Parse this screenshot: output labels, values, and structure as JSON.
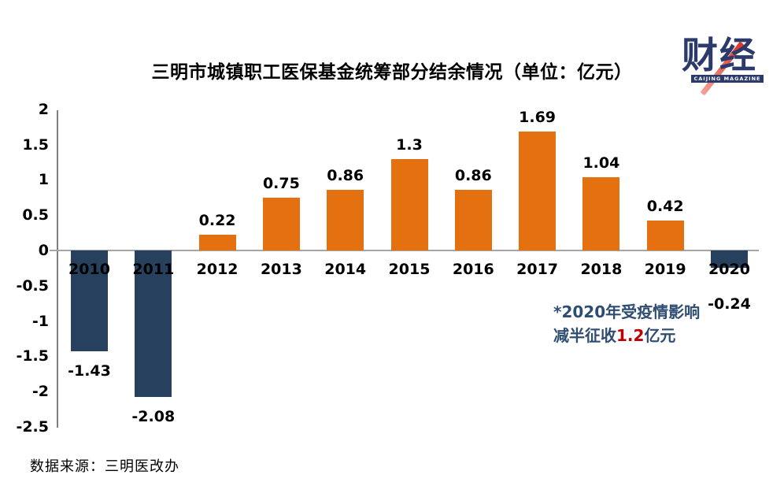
{
  "chart": {
    "title": "三明市城镇职工医保基金统筹部分结余情况（单位：亿元）"
  },
  "chart_data": {
    "type": "bar",
    "title": "三明市城镇职工医保基金统筹部分结余情况",
    "unit": "亿元",
    "categories": [
      "2010",
      "2011",
      "2012",
      "2013",
      "2014",
      "2015",
      "2016",
      "2017",
      "2018",
      "2019",
      "2020"
    ],
    "values": [
      -1.43,
      -2.08,
      0.22,
      0.75,
      0.86,
      1.3,
      0.86,
      1.69,
      1.04,
      0.42,
      -0.24
    ],
    "value_labels": [
      "-1.43",
      "-2.08",
      "0.22",
      "0.75",
      "0.86",
      "1.3",
      "0.86",
      "1.69",
      "1.04",
      "0.42",
      "-0.24"
    ],
    "ylim": [
      -2.5,
      2
    ],
    "ytick_values": [
      2,
      1.5,
      1,
      0.5,
      0,
      -0.5,
      -1,
      -1.5,
      -2,
      -2.5
    ],
    "ytick_labels": [
      "2",
      "1.5",
      "1",
      "0.5",
      "0",
      "-0.5",
      "-1",
      "-1.5",
      "-2",
      "-2.5"
    ],
    "grid": false,
    "legend": "none",
    "positive_color": "#E5700F",
    "negative_color": "#26405E"
  },
  "annotation": {
    "line1": "*2020年受疫情影响",
    "line2_prefix": "减半征收",
    "line2_highlight": "1.2",
    "line2_suffix": "亿元"
  },
  "logo": {
    "text": "财经",
    "subtext": "CAIJING MAGAZINE"
  },
  "source": {
    "text": "数据来源：三明医改办"
  },
  "colors": {
    "positive": "#E5700F",
    "negative": "#26405E",
    "annotation": "#2E4D71",
    "highlight": "#C00000",
    "logo": "#2B3A6B",
    "slash": "#DD3327",
    "axis": "#7F7F7F",
    "zeroline": "#A6A6A6"
  }
}
